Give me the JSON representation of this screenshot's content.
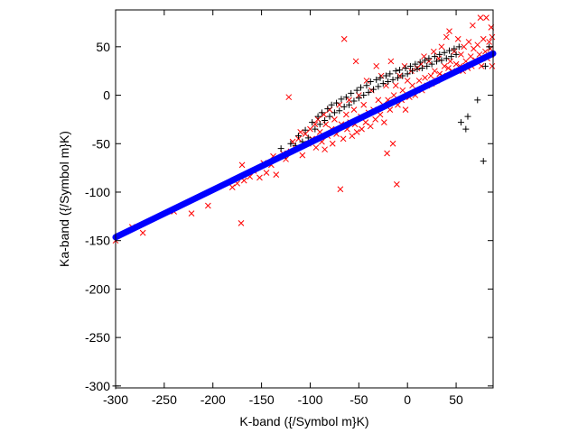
{
  "chart_data": {
    "type": "scatter",
    "xlabel": "K-band ({/Symbol m}K)",
    "ylabel": "Ka-band ({/Symbol m}K)",
    "xlim": [
      -300,
      88
    ],
    "ylim": [
      -302,
      88
    ],
    "x_ticks": [
      -300,
      -250,
      -200,
      -150,
      -100,
      -50,
      0,
      50
    ],
    "y_ticks": [
      -300,
      -250,
      -200,
      -150,
      -100,
      -50,
      0,
      50
    ],
    "grid": false,
    "colors": {
      "cross": "#ff0000",
      "plus": "#000000",
      "line": "#0000ff"
    },
    "series": [
      {
        "marker": "x",
        "color": "#ff0000",
        "points": [
          [
            -300,
            -150
          ],
          [
            -283,
            -136
          ],
          [
            -272,
            -142
          ],
          [
            -240,
            -120
          ],
          [
            -222,
            -122
          ],
          [
            -205,
            -114
          ],
          [
            -180,
            -95
          ],
          [
            -175,
            -91
          ],
          [
            -171,
            -132
          ],
          [
            -170,
            -72
          ],
          [
            -168,
            -88
          ],
          [
            -162,
            -84
          ],
          [
            -158,
            -78
          ],
          [
            -152,
            -85
          ],
          [
            -148,
            -70
          ],
          [
            -145,
            -80
          ],
          [
            -140,
            -72
          ],
          [
            -138,
            -63
          ],
          [
            -135,
            -82
          ],
          [
            -128,
            -60
          ],
          [
            -125,
            -66
          ],
          [
            -122,
            -2
          ],
          [
            -120,
            -58
          ],
          [
            -118,
            -48
          ],
          [
            -115,
            -55
          ],
          [
            -112,
            -45
          ],
          [
            -110,
            -38
          ],
          [
            -108,
            -62
          ],
          [
            -105,
            -40
          ],
          [
            -102,
            -50
          ],
          [
            -100,
            -35
          ],
          [
            -98,
            -45
          ],
          [
            -95,
            -30
          ],
          [
            -94,
            -54
          ],
          [
            -92,
            -25
          ],
          [
            -90,
            -38
          ],
          [
            -88,
            -48
          ],
          [
            -86,
            -20
          ],
          [
            -85,
            -56
          ],
          [
            -84,
            -30
          ],
          [
            -82,
            -42
          ],
          [
            -80,
            -15
          ],
          [
            -78,
            -35
          ],
          [
            -77,
            -50
          ],
          [
            -75,
            -25
          ],
          [
            -73,
            -40
          ],
          [
            -70,
            -10
          ],
          [
            -69,
            -97
          ],
          [
            -68,
            -30
          ],
          [
            -66,
            -45
          ],
          [
            -65,
            58
          ],
          [
            -63,
            -20
          ],
          [
            -62,
            -35
          ],
          [
            -60,
            -5
          ],
          [
            -59,
            -28
          ],
          [
            -57,
            -42
          ],
          [
            -55,
            -15
          ],
          [
            -54,
            -30
          ],
          [
            -53,
            35
          ],
          [
            -52,
            -38
          ],
          [
            -50,
            0
          ],
          [
            -48,
            -22
          ],
          [
            -47,
            -35
          ],
          [
            -45,
            -10
          ],
          [
            -43,
            -28
          ],
          [
            -42,
            15
          ],
          [
            -40,
            -18
          ],
          [
            -38,
            -32
          ],
          [
            -37,
            5
          ],
          [
            -35,
            -15
          ],
          [
            -33,
            -25
          ],
          [
            -32,
            30
          ],
          [
            -30,
            -5
          ],
          [
            -28,
            -20
          ],
          [
            -27,
            20
          ],
          [
            -25,
            -10
          ],
          [
            -24,
            -28
          ],
          [
            -22,
            10
          ],
          [
            -21,
            -60
          ],
          [
            -20,
            -5
          ],
          [
            -18,
            -15
          ],
          [
            -17,
            35
          ],
          [
            -15,
            -50
          ],
          [
            -14,
            0
          ],
          [
            -12,
            10
          ],
          [
            -11,
            -92
          ],
          [
            -10,
            -10
          ],
          [
            -8,
            20
          ],
          [
            -6,
            -5
          ],
          [
            -5,
            5
          ],
          [
            -3,
            30
          ],
          [
            -2,
            -15
          ],
          [
            0,
            15
          ],
          [
            2,
            -2
          ],
          [
            4,
            25
          ],
          [
            5,
            10
          ],
          [
            8,
            0
          ],
          [
            10,
            28
          ],
          [
            12,
            15
          ],
          [
            14,
            32
          ],
          [
            15,
            5
          ],
          [
            17,
            40
          ],
          [
            18,
            18
          ],
          [
            20,
            10
          ],
          [
            22,
            35
          ],
          [
            24,
            20
          ],
          [
            25,
            12
          ],
          [
            27,
            45
          ],
          [
            28,
            25
          ],
          [
            30,
            15
          ],
          [
            32,
            38
          ],
          [
            33,
            22
          ],
          [
            35,
            50
          ],
          [
            36,
            20
          ],
          [
            38,
            30
          ],
          [
            40,
            60
          ],
          [
            42,
            28
          ],
          [
            43,
            66
          ],
          [
            44,
            35
          ],
          [
            46,
            25
          ],
          [
            48,
            45
          ],
          [
            50,
            32
          ],
          [
            52,
            58
          ],
          [
            54,
            30
          ],
          [
            55,
            42
          ],
          [
            57,
            25
          ],
          [
            58,
            50
          ],
          [
            60,
            35
          ],
          [
            62,
            28
          ],
          [
            63,
            55
          ],
          [
            65,
            40
          ],
          [
            66,
            30
          ],
          [
            67,
            72
          ],
          [
            68,
            48
          ],
          [
            70,
            36
          ],
          [
            72,
            52
          ],
          [
            74,
            42
          ],
          [
            75,
            80
          ],
          [
            76,
            30
          ],
          [
            78,
            58
          ],
          [
            80,
            45
          ],
          [
            81,
            80
          ],
          [
            82,
            38
          ],
          [
            84,
            55
          ],
          [
            85,
            48
          ],
          [
            86,
            70
          ],
          [
            87,
            30
          ],
          [
            87,
            60
          ],
          [
            86,
            42
          ]
        ]
      },
      {
        "marker": "+",
        "color": "#000000",
        "points": [
          [
            -300,
            -300
          ],
          [
            -130,
            -55
          ],
          [
            -125,
            -62
          ],
          [
            -120,
            -50
          ],
          [
            -115,
            -52
          ],
          [
            -112,
            -42
          ],
          [
            -108,
            -48
          ],
          [
            -105,
            -36
          ],
          [
            -102,
            -44
          ],
          [
            -98,
            -28
          ],
          [
            -95,
            -35
          ],
          [
            -92,
            -22
          ],
          [
            -90,
            -30
          ],
          [
            -88,
            -18
          ],
          [
            -85,
            -26
          ],
          [
            -82,
            -14
          ],
          [
            -80,
            -22
          ],
          [
            -78,
            -10
          ],
          [
            -75,
            -18
          ],
          [
            -73,
            -8
          ],
          [
            -70,
            -16
          ],
          [
            -68,
            -4
          ],
          [
            -65,
            -12
          ],
          [
            -63,
            -2
          ],
          [
            -60,
            -10
          ],
          [
            -58,
            2
          ],
          [
            -55,
            -6
          ],
          [
            -52,
            5
          ],
          [
            -50,
            -3
          ],
          [
            -48,
            8
          ],
          [
            -45,
            0
          ],
          [
            -42,
            10
          ],
          [
            -40,
            3
          ],
          [
            -38,
            14
          ],
          [
            -35,
            6
          ],
          [
            -32,
            16
          ],
          [
            -30,
            9
          ],
          [
            -28,
            18
          ],
          [
            -25,
            12
          ],
          [
            -22,
            20
          ],
          [
            -20,
            14
          ],
          [
            -18,
            22
          ],
          [
            -15,
            16
          ],
          [
            -12,
            25
          ],
          [
            -10,
            18
          ],
          [
            -8,
            26
          ],
          [
            -5,
            20
          ],
          [
            -2,
            28
          ],
          [
            0,
            22
          ],
          [
            3,
            30
          ],
          [
            5,
            25
          ],
          [
            8,
            32
          ],
          [
            10,
            27
          ],
          [
            13,
            34
          ],
          [
            15,
            28
          ],
          [
            18,
            36
          ],
          [
            20,
            30
          ],
          [
            22,
            38
          ],
          [
            25,
            32
          ],
          [
            28,
            40
          ],
          [
            30,
            35
          ],
          [
            33,
            42
          ],
          [
            35,
            36
          ],
          [
            38,
            44
          ],
          [
            40,
            38
          ],
          [
            43,
            46
          ],
          [
            45,
            40
          ],
          [
            48,
            48
          ],
          [
            50,
            42
          ],
          [
            53,
            50
          ],
          [
            55,
            -28
          ],
          [
            60,
            -35
          ],
          [
            62,
            -22
          ],
          [
            72,
            -5
          ],
          [
            78,
            -68
          ],
          [
            80,
            30
          ],
          [
            84,
            50
          ]
        ]
      },
      {
        "marker": "o",
        "color": "#0000ff",
        "line": true,
        "x": [
          -300,
          88
        ],
        "y": [
          -146.5,
          43.0
        ]
      }
    ]
  }
}
